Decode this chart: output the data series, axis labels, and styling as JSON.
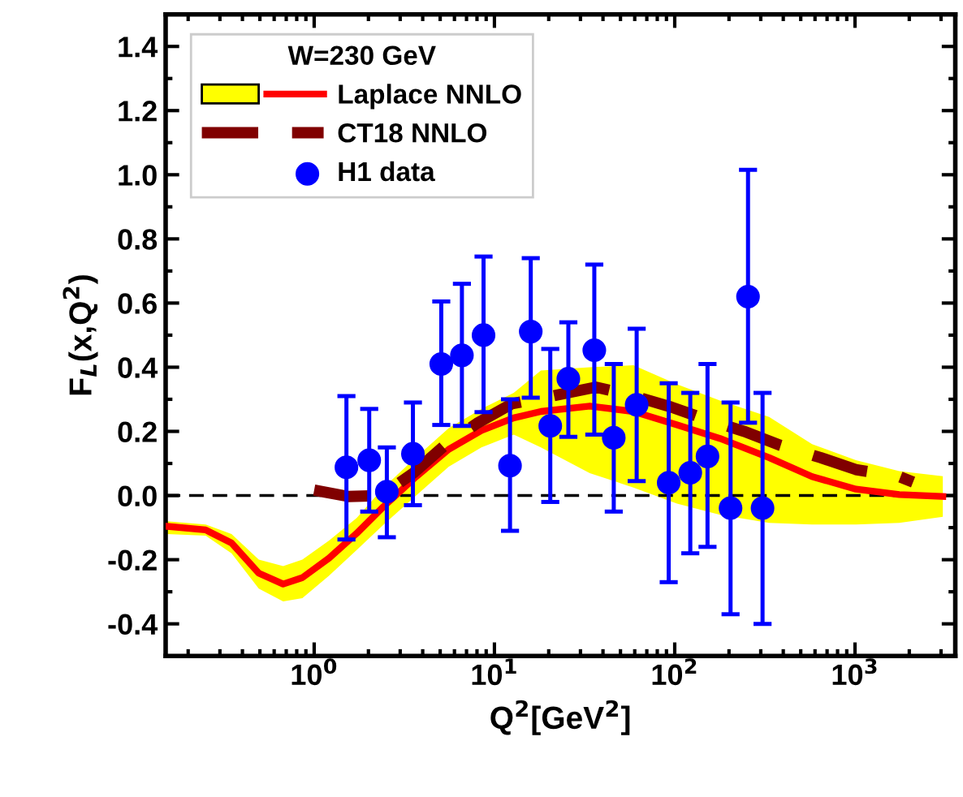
{
  "chart_data": {
    "type": "line",
    "xlabel": "Q$^{2}$[GeV$^{2}$]",
    "ylabel": "F$_{L}$(x,Q$^{2}$)",
    "legend_title": "W=230 GeV",
    "log": "x",
    "xlim": [
      0.15,
      3600
    ],
    "ylim": [
      -0.5,
      1.5
    ],
    "xticks": [
      {
        "value": 1,
        "label": "10$^{0}$"
      },
      {
        "value": 10,
        "label": "10$^{1}$"
      },
      {
        "value": 100,
        "label": "10$^{2}$"
      },
      {
        "value": 1000,
        "label": "10$^{3}$"
      }
    ],
    "yticks": [
      {
        "value": -0.4,
        "label": "-0.4"
      },
      {
        "value": -0.2,
        "label": "-0.2"
      },
      {
        "value": 0,
        "label": "0.0"
      },
      {
        "value": 0.2,
        "label": "0.2"
      },
      {
        "value": 0.4,
        "label": "0.4"
      },
      {
        "value": 0.6,
        "label": "0.6"
      },
      {
        "value": 0.8,
        "label": "0.8"
      },
      {
        "value": 1.0,
        "label": "1.0"
      },
      {
        "value": 1.2,
        "label": "1.2"
      },
      {
        "value": 1.4,
        "label": "1.4"
      }
    ],
    "grid": false,
    "legend": "top left",
    "ref_lines": [
      {
        "axis": "y",
        "value": 0,
        "label": null,
        "color": "#000000",
        "line_style": "dashed"
      }
    ],
    "series": [
      {
        "name": "Laplace NNLO",
        "color": "#ff0000",
        "line_style": "solid",
        "marker": "none",
        "x": [
          0.152,
          0.25,
          0.348,
          0.493,
          0.673,
          0.86,
          1.21,
          1.72,
          2.43,
          3.68,
          5.58,
          8.47,
          12.8,
          18.1,
          33.8,
          59,
          103,
          178,
          334,
          578,
          1012,
          1760,
          3070
        ],
        "values": [
          -0.096,
          -0.107,
          -0.148,
          -0.242,
          -0.276,
          -0.256,
          -0.195,
          -0.118,
          -0.034,
          0.059,
          0.144,
          0.203,
          0.242,
          0.262,
          0.279,
          0.262,
          0.22,
          0.178,
          0.118,
          0.059,
          0.02,
          0.003,
          -0.003
        ],
        "lower": [
          -0.12,
          -0.125,
          -0.18,
          -0.29,
          -0.33,
          -0.32,
          -0.25,
          -0.17,
          -0.09,
          0.0,
          0.09,
          0.15,
          0.19,
          0.15,
          0.07,
          0.025,
          -0.025,
          -0.06,
          -0.085,
          -0.09,
          -0.09,
          -0.085,
          -0.066
        ],
        "upper": [
          -0.08,
          -0.09,
          -0.12,
          -0.2,
          -0.22,
          -0.2,
          -0.14,
          -0.07,
          0.025,
          0.12,
          0.21,
          0.27,
          0.32,
          0.39,
          0.4,
          0.406,
          0.347,
          0.296,
          0.245,
          0.16,
          0.11,
          0.076,
          0.06
        ]
      },
      {
        "name": "CT18 NNLO",
        "color": "#800000",
        "line_style": "dashed",
        "marker": "none",
        "x": [
          1.0,
          1.55,
          2.35,
          3.55,
          5.2,
          8.0,
          12.5,
          20.9,
          36.5,
          57,
          95.5,
          150,
          243,
          383,
          645,
          1010,
          1760,
          2100
        ],
        "values": [
          0.017,
          -0.003,
          0.0,
          0.07,
          0.152,
          0.225,
          0.286,
          0.31,
          0.338,
          0.313,
          0.276,
          0.237,
          0.2,
          0.157,
          0.118,
          0.081,
          0.059,
          0.042
        ]
      },
      {
        "name": "H1 data",
        "type": "scatter",
        "color": "#0000ff",
        "marker": "circle",
        "x": [
          1.51,
          2.02,
          2.53,
          3.53,
          5.07,
          6.6,
          8.7,
          12.2,
          15.9,
          20.4,
          25.7,
          35.8,
          45.9,
          61.5,
          92.6,
          122,
          152,
          204,
          255,
          307
        ],
        "values": [
          0.088,
          0.11,
          0.012,
          0.13,
          0.41,
          0.437,
          0.5,
          0.093,
          0.511,
          0.217,
          0.364,
          0.453,
          0.18,
          0.283,
          0.04,
          0.071,
          0.122,
          -0.039,
          0.62,
          -0.039
        ],
        "errors": [
          [
            -0.137,
            0.31
          ],
          [
            -0.05,
            0.27
          ],
          [
            -0.13,
            0.15
          ],
          [
            -0.03,
            0.29
          ],
          [
            0.22,
            0.605
          ],
          [
            0.217,
            0.66
          ],
          [
            0.26,
            0.745
          ],
          [
            -0.11,
            0.3
          ],
          [
            0.305,
            0.74
          ],
          [
            -0.02,
            0.457
          ],
          [
            0.183,
            0.54
          ],
          [
            0.19,
            0.72
          ],
          [
            -0.05,
            0.41
          ],
          [
            0.045,
            0.52
          ],
          [
            -0.27,
            0.35
          ],
          [
            -0.18,
            0.32
          ],
          [
            -0.16,
            0.41
          ],
          [
            -0.37,
            0.29
          ],
          [
            0.227,
            1.015
          ],
          [
            -0.4,
            0.32
          ]
        ]
      }
    ]
  }
}
